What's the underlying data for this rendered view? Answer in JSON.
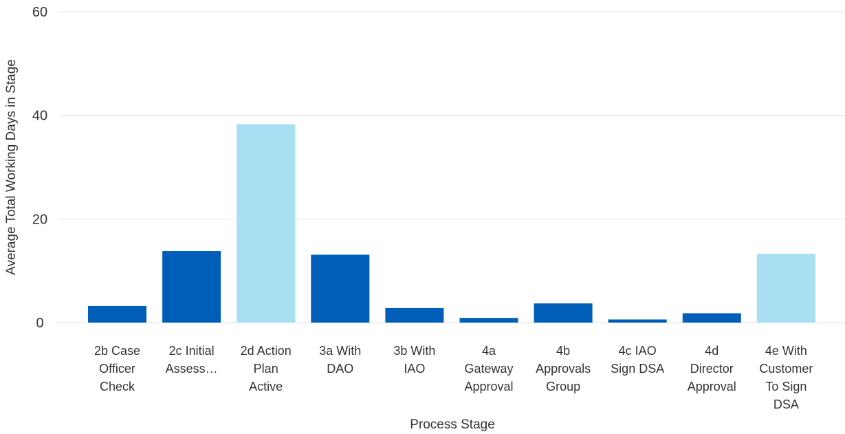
{
  "chart_data": {
    "type": "bar",
    "xlabel": "Process Stage",
    "ylabel": "Average Total Working Days in Stage",
    "ylim": [
      0,
      60
    ],
    "yticks": [
      0,
      20,
      40,
      60
    ],
    "grid": true,
    "categories": [
      [
        "2b Case",
        "Officer",
        "Check"
      ],
      [
        "2c Initial",
        "Assess…"
      ],
      [
        "2d Action",
        "Plan",
        "Active"
      ],
      [
        "3a With",
        "DAO"
      ],
      [
        "3b With",
        "IAO"
      ],
      [
        "4a",
        "Gateway",
        "Approval"
      ],
      [
        "4b",
        "Approvals",
        "Group"
      ],
      [
        "4c IAO",
        "Sign DSA"
      ],
      [
        "4d",
        "Director",
        "Approval"
      ],
      [
        "4e With",
        "Customer",
        "To Sign",
        "DSA"
      ]
    ],
    "values": [
      3.2,
      13.8,
      38.3,
      13.1,
      2.8,
      0.9,
      3.7,
      0.6,
      1.8,
      13.3
    ],
    "highlighted": [
      false,
      false,
      true,
      false,
      false,
      false,
      false,
      false,
      false,
      true
    ],
    "colors": {
      "bar": "#005EB8",
      "highlight": "#A9DFF3",
      "grid": "#e2e2e2"
    }
  }
}
